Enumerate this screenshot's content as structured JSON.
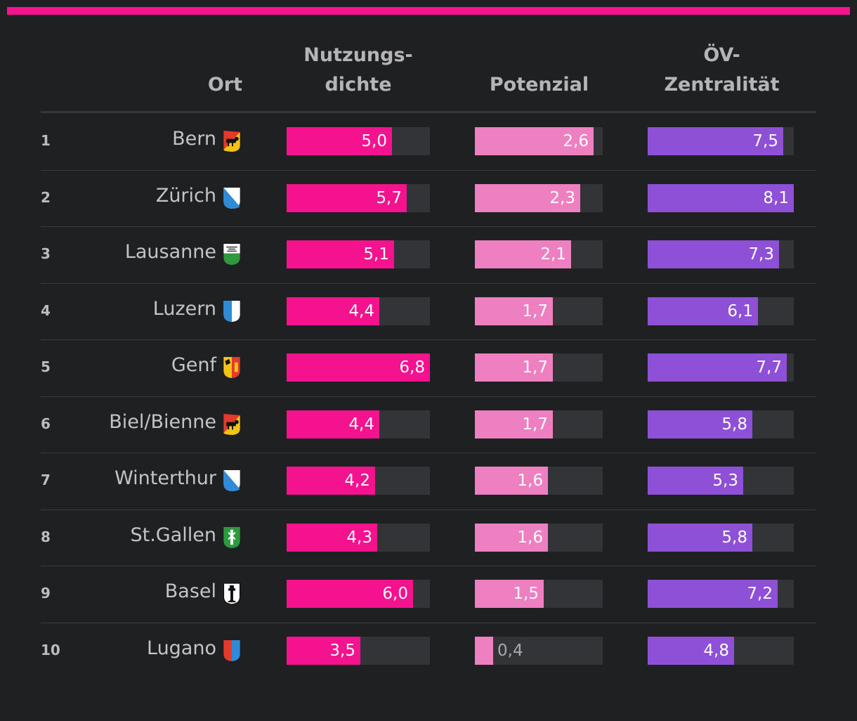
{
  "colors": {
    "accent": "#f5128e",
    "nutzungsdichte": "#f5128e",
    "potenzial": "#ee80c2",
    "oev": "#8e50d6",
    "track": "#333437"
  },
  "chart_data": {
    "type": "table",
    "columns": [
      "Ort",
      "Nutzungs-dichte",
      "Potenzial",
      "ÖV-Zentralität"
    ],
    "header": {
      "ort": "Ort",
      "nutzungsdichte_1": "Nutzungs-",
      "nutzungsdichte_2": "dichte",
      "potenzial": "Potenzial",
      "oev_1": "ÖV-",
      "oev_2": "Zentralität"
    },
    "scales": {
      "nutzungsdichte": [
        0,
        6.8
      ],
      "potenzial": [
        0,
        2.8
      ],
      "oev": [
        0,
        8.1
      ]
    },
    "rows": [
      {
        "rank": "1",
        "city": "Bern",
        "flag": "bern-flag",
        "n": 5.0,
        "n_label": "5,0",
        "p": 2.6,
        "p_label": "2,6",
        "o": 7.5,
        "o_label": "7,5"
      },
      {
        "rank": "2",
        "city": "Zürich",
        "flag": "zurich-flag",
        "n": 5.7,
        "n_label": "5,7",
        "p": 2.3,
        "p_label": "2,3",
        "o": 8.1,
        "o_label": "8,1"
      },
      {
        "rank": "3",
        "city": "Lausanne",
        "flag": "vaud-flag",
        "n": 5.1,
        "n_label": "5,1",
        "p": 2.1,
        "p_label": "2,1",
        "o": 7.3,
        "o_label": "7,3"
      },
      {
        "rank": "4",
        "city": "Luzern",
        "flag": "luzern-flag",
        "n": 4.4,
        "n_label": "4,4",
        "p": 1.7,
        "p_label": "1,7",
        "o": 6.1,
        "o_label": "6,1"
      },
      {
        "rank": "5",
        "city": "Genf",
        "flag": "geneva-flag",
        "n": 6.8,
        "n_label": "6,8",
        "p": 1.7,
        "p_label": "1,7",
        "o": 7.7,
        "o_label": "7,7"
      },
      {
        "rank": "6",
        "city": "Biel/Bienne",
        "flag": "bern-flag",
        "n": 4.4,
        "n_label": "4,4",
        "p": 1.7,
        "p_label": "1,7",
        "o": 5.8,
        "o_label": "5,8"
      },
      {
        "rank": "7",
        "city": "Winterthur",
        "flag": "zurich-flag",
        "n": 4.2,
        "n_label": "4,2",
        "p": 1.6,
        "p_label": "1,6",
        "o": 5.3,
        "o_label": "5,3"
      },
      {
        "rank": "8",
        "city": "St.Gallen",
        "flag": "stgallen-flag",
        "n": 4.3,
        "n_label": "4,3",
        "p": 1.6,
        "p_label": "1,6",
        "o": 5.8,
        "o_label": "5,8"
      },
      {
        "rank": "9",
        "city": "Basel",
        "flag": "basel-flag",
        "n": 6.0,
        "n_label": "6,0",
        "p": 1.5,
        "p_label": "1,5",
        "o": 7.2,
        "o_label": "7,2"
      },
      {
        "rank": "10",
        "city": "Lugano",
        "flag": "ticino-flag",
        "n": 3.5,
        "n_label": "3,5",
        "p": 0.4,
        "p_label": "0,4",
        "o": 4.8,
        "o_label": "4,8"
      }
    ]
  }
}
